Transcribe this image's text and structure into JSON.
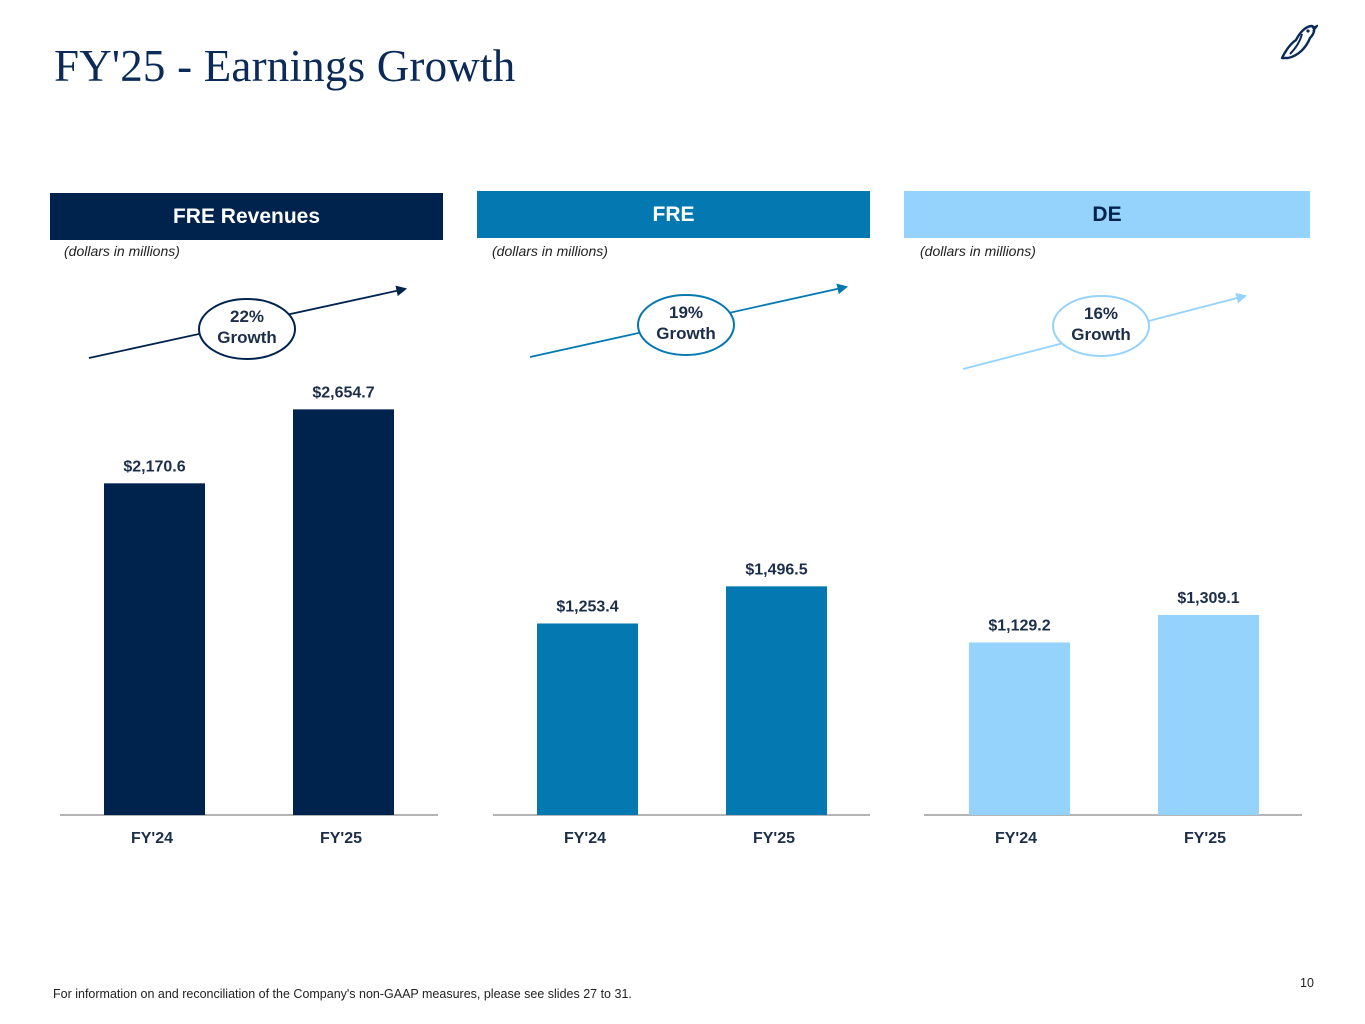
{
  "page": {
    "title": "FY'25 - Earnings Growth",
    "footnote": "For information on and reconciliation of the Company's non-GAAP measures, please see slides 27 to 31.",
    "page_number": "10",
    "logo_icon": "bird-logo-icon"
  },
  "colors": {
    "navy": "#00234e",
    "teal": "#0479b1",
    "light": "#95d2fc",
    "axis": "#888888",
    "label": "#1c2e4a"
  },
  "panels": [
    {
      "header": "FRE Revenues",
      "unit_note": "(dollars in millions)",
      "growth_pct": "22%",
      "growth_word": "Growth"
    },
    {
      "header": "FRE",
      "unit_note": "(dollars in millions)",
      "growth_pct": "19%",
      "growth_word": "Growth"
    },
    {
      "header": "DE",
      "unit_note": "(dollars in millions)",
      "growth_pct": "16%",
      "growth_word": "Growth"
    }
  ],
  "chart_data": [
    {
      "type": "bar",
      "title": "FRE Revenues",
      "ylabel": "(dollars in millions)",
      "categories": [
        "FY'24",
        "FY'25"
      ],
      "values": [
        2170.6,
        2654.7
      ],
      "value_labels": [
        "$2,170.6",
        "$2,654.7"
      ],
      "annotation": "22% Growth",
      "ylim": [
        0,
        2654.7
      ],
      "grid": false
    },
    {
      "type": "bar",
      "title": "FRE",
      "ylabel": "(dollars in millions)",
      "categories": [
        "FY'24",
        "FY'25"
      ],
      "values": [
        1253.4,
        1496.5
      ],
      "value_labels": [
        "$1,253.4",
        "$1,496.5"
      ],
      "annotation": "19% Growth",
      "ylim": [
        0,
        1496.5
      ],
      "grid": false
    },
    {
      "type": "bar",
      "title": "DE",
      "ylabel": "(dollars in millions)",
      "categories": [
        "FY'24",
        "FY'25"
      ],
      "values": [
        1129.2,
        1309.1
      ],
      "value_labels": [
        "$1,129.2",
        "$1,309.1"
      ],
      "annotation": "16% Growth",
      "ylim": [
        0,
        1309.1
      ],
      "grid": false
    }
  ]
}
